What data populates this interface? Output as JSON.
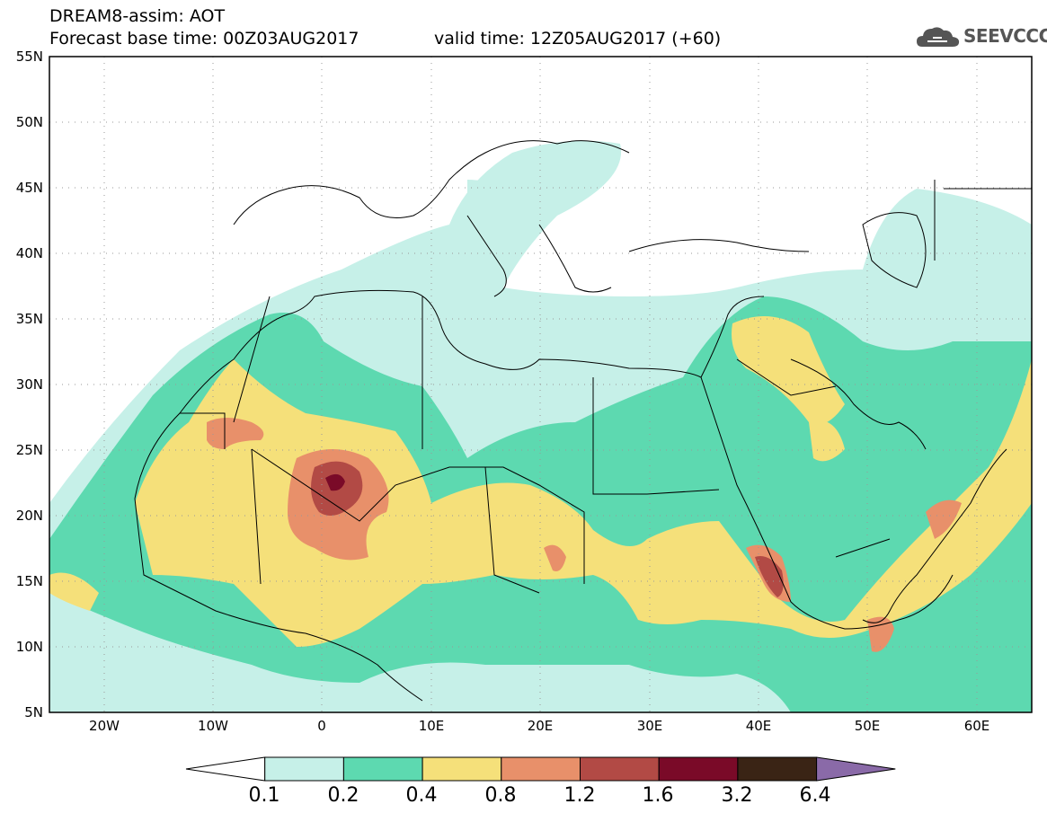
{
  "header": {
    "title": "DREAM8-assim: AOT",
    "base_time": "Forecast base time: 00Z03AUG2017",
    "valid_time": "valid time: 12Z05AUG2017 (+60)"
  },
  "logo": {
    "text": "SEEVCCC",
    "icon": "cloud-icon"
  },
  "map": {
    "projection": "lat-lon",
    "lon_range": [
      -25,
      65
    ],
    "lat_range": [
      5,
      55
    ],
    "lat_labels": [
      "55N",
      "50N",
      "45N",
      "40N",
      "35N",
      "30N",
      "25N",
      "20N",
      "15N",
      "10N",
      "5N"
    ],
    "lon_labels": [
      "20W",
      "10W",
      "0",
      "10E",
      "20E",
      "30E",
      "40E",
      "50E",
      "60E"
    ],
    "grid": "dotted",
    "border_color": "#000000"
  },
  "colorbar": {
    "levels": [
      "0.1",
      "0.2",
      "0.4",
      "0.8",
      "1.2",
      "1.6",
      "3.2",
      "6.4"
    ],
    "colors": [
      "#ffffff",
      "#c6f0e8",
      "#5dd9b0",
      "#f5e07a",
      "#e8906a",
      "#b24a45",
      "#7a0a28",
      "#3a2415",
      "#8a6aa8"
    ]
  }
}
